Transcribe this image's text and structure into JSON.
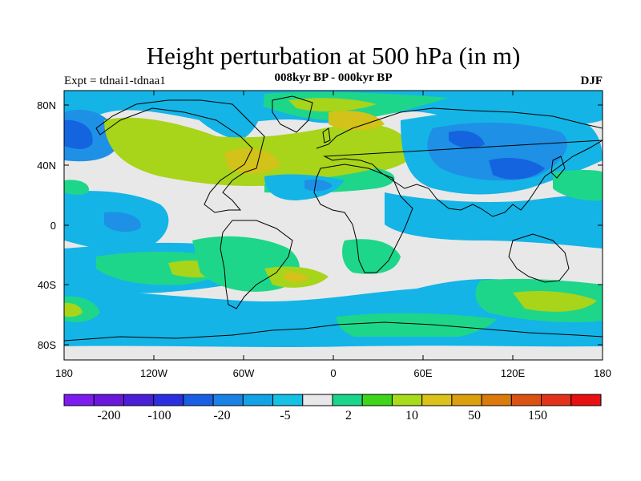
{
  "header": {
    "title": "Height perturbation at 500 hPa (in m)",
    "subtitle": "008kyr BP - 000kyr BP",
    "experiment_label": "Expt = tdnai1-tdnaa1",
    "season_label": "DJF"
  },
  "axes": {
    "lat_ticks": [
      "80N",
      "40N",
      "0",
      "40S",
      "80S"
    ],
    "lon_ticks": [
      "180",
      "120W",
      "60W",
      "0",
      "60E",
      "120E",
      "180"
    ]
  },
  "colorbar": {
    "colors": [
      "#7d1bf0",
      "#6a16dc",
      "#4b1ed8",
      "#2c2fe0",
      "#1a5ee6",
      "#1a82e6",
      "#12a3e6",
      "#15c2e6",
      "#e8e8e8",
      "#19d68a",
      "#3ed61a",
      "#a8dc1a",
      "#dcc21a",
      "#dca00f",
      "#dc7a0c",
      "#dc5212",
      "#e2321a",
      "#e81010"
    ],
    "labels": [
      "-200",
      "-100",
      "-20",
      "-5",
      "2",
      "10",
      "50",
      "150"
    ]
  },
  "field_colors": {
    "neutral": "#e8e8e8",
    "light_blue": "#14b4e6",
    "mid_blue": "#1e90e6",
    "dark_blue": "#1464e0",
    "green": "#1ed68a",
    "yellow_green": "#a8d41a",
    "yellow": "#d2c21a",
    "orange": "#dca00f"
  }
}
